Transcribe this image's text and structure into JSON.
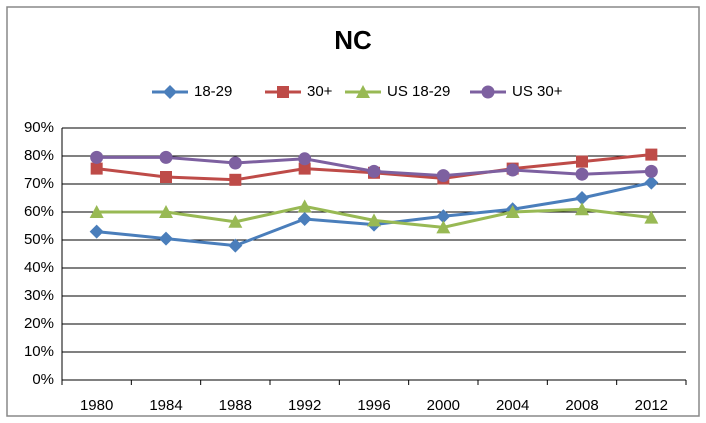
{
  "chart_data": {
    "type": "line",
    "title": "NC",
    "categories": [
      "1980",
      "1984",
      "1988",
      "1992",
      "1996",
      "2000",
      "2004",
      "2008",
      "2012"
    ],
    "series": [
      {
        "name": "18-29",
        "color": "#4a7ebb",
        "marker": "diamond",
        "values": [
          53,
          50.5,
          48,
          57.5,
          55.5,
          58.5,
          61,
          65,
          70.5
        ]
      },
      {
        "name": "30+",
        "color": "#be4b48",
        "marker": "square",
        "values": [
          75.5,
          72.5,
          71.5,
          75.5,
          74,
          72,
          75.5,
          78,
          80.5
        ]
      },
      {
        "name": "US 18-29",
        "color": "#98b954",
        "marker": "triangle",
        "values": [
          60,
          60,
          56.5,
          62,
          57,
          54.5,
          60,
          61,
          58
        ]
      },
      {
        "name": "US 30+",
        "color": "#7d60a0",
        "marker": "circle",
        "values": [
          79.5,
          79.5,
          77.5,
          79,
          74.5,
          73,
          75,
          73.5,
          74.5
        ]
      }
    ],
    "ylim": [
      0,
      90
    ],
    "yticks": [
      {
        "value": 0,
        "label": "0%"
      },
      {
        "value": 10,
        "label": "10%"
      },
      {
        "value": 20,
        "label": "20%"
      },
      {
        "value": 30,
        "label": "30%"
      },
      {
        "value": 40,
        "label": "40%"
      },
      {
        "value": 50,
        "label": "50%"
      },
      {
        "value": 60,
        "label": "60%"
      },
      {
        "value": 70,
        "label": "70%"
      },
      {
        "value": 80,
        "label": "80%"
      },
      {
        "value": 90,
        "label": "90%"
      }
    ],
    "grid": true,
    "legend": "top"
  }
}
